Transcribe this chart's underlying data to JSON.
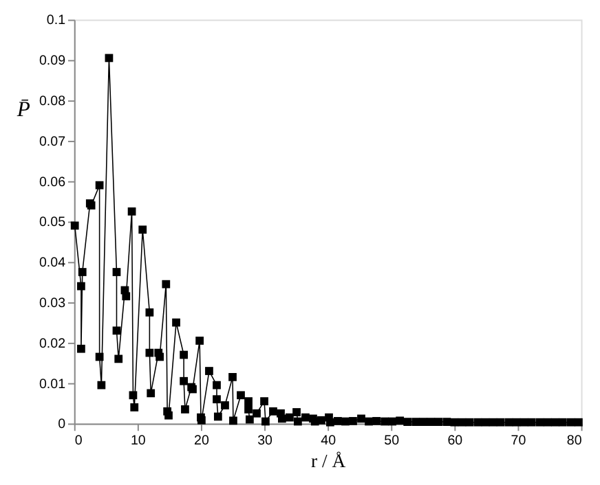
{
  "chart_data": {
    "type": "line",
    "xlabel": "r / Å",
    "ylabel": "P̄",
    "marker": "square",
    "line_style": "solid",
    "grid": false,
    "legend": false,
    "xlim": [
      0,
      80
    ],
    "xticks": [
      0,
      10,
      20,
      30,
      40,
      50,
      60,
      70,
      80
    ],
    "ylim": [
      0,
      0.1
    ],
    "yticks": [
      0,
      0.01,
      0.02,
      0.03,
      0.04,
      0.05,
      0.06,
      0.07,
      0.08,
      0.09,
      0.1
    ],
    "series": [
      {
        "color": "#000000",
        "x": [
          0.1,
          1.1,
          1.1,
          1.3,
          2.5,
          2.7,
          4.0,
          4.0,
          4.3,
          5.5,
          6.7,
          6.7,
          7.0,
          8.0,
          8.2,
          9.1,
          9.3,
          9.5,
          10.8,
          11.9,
          11.9,
          12.1,
          13.3,
          13.5,
          14.5,
          14.7,
          14.9,
          16.1,
          17.3,
          17.3,
          17.5,
          18.5,
          18.7,
          19.8,
          20.0,
          20.1,
          21.3,
          22.5,
          22.5,
          22.7,
          23.8,
          25.0,
          25.1,
          26.3,
          27.5,
          27.5,
          27.7,
          28.8,
          30.0,
          30.2,
          31.4,
          32.6,
          32.8,
          34.0,
          35.1,
          35.3,
          36.5,
          37.7,
          38.0,
          39.0,
          40.2,
          40.4,
          41.6,
          42.8,
          44.0,
          45.3,
          46.5,
          47.7,
          49.0,
          50.2,
          51.4,
          52.6,
          53.9,
          55.1,
          56.3,
          57.5,
          58.8,
          60.0,
          61.2,
          62.4,
          63.7,
          64.9,
          66.1,
          67.3,
          68.6,
          69.8,
          71.0,
          72.2,
          73.5,
          74.7,
          75.9,
          77.1,
          78.4,
          79.6
        ],
        "values": [
          0.049,
          0.034,
          0.0185,
          0.0375,
          0.0545,
          0.054,
          0.059,
          0.0165,
          0.0095,
          0.0905,
          0.0375,
          0.023,
          0.016,
          0.033,
          0.0315,
          0.0525,
          0.007,
          0.004,
          0.048,
          0.0275,
          0.0175,
          0.0075,
          0.0175,
          0.0165,
          0.0345,
          0.003,
          0.002,
          0.025,
          0.017,
          0.0105,
          0.0035,
          0.009,
          0.0085,
          0.0205,
          0.0015,
          0.0008,
          0.013,
          0.0095,
          0.006,
          0.0017,
          0.0045,
          0.0115,
          0.0007,
          0.007,
          0.0055,
          0.0035,
          0.001,
          0.0025,
          0.0055,
          0.0005,
          0.003,
          0.0025,
          0.0012,
          0.0015,
          0.0028,
          0.0005,
          0.0015,
          0.0012,
          0.0005,
          0.0008,
          0.0015,
          0.0003,
          0.0006,
          0.0005,
          0.0006,
          0.0012,
          0.0005,
          0.0006,
          0.0005,
          0.0005,
          0.0007,
          0.0004,
          0.0004,
          0.0004,
          0.0004,
          0.0004,
          0.0004,
          0.0003,
          0.0003,
          0.0003,
          0.0003,
          0.0003,
          0.0003,
          0.0003,
          0.0003,
          0.0003,
          0.0003,
          0.0003,
          0.0003,
          0.0003,
          0.0003,
          0.0003,
          0.0003,
          0.0003
        ]
      }
    ]
  }
}
